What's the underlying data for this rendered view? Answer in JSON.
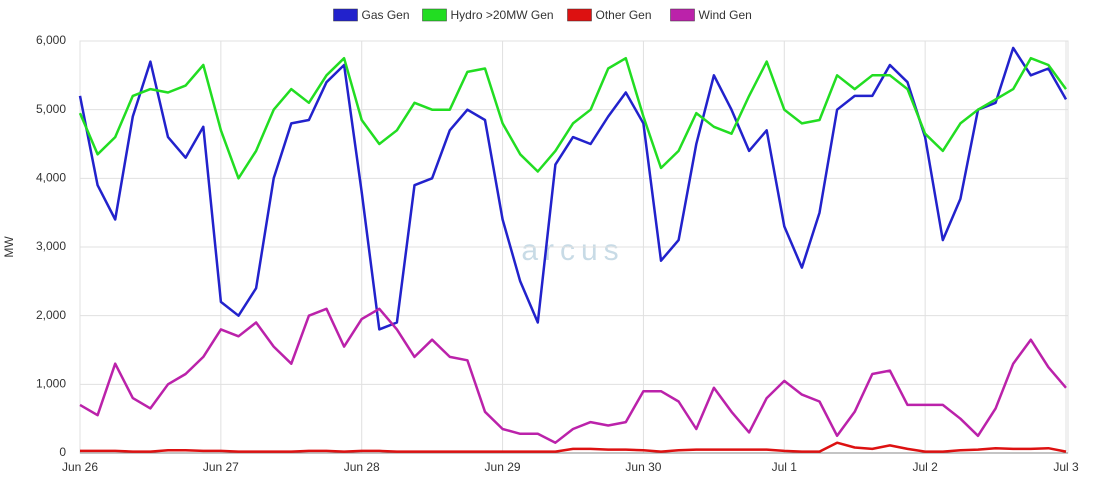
{
  "chart_data": {
    "type": "line",
    "ylabel": "MW",
    "watermark": "arcus",
    "categories": [
      "Jun 26",
      null,
      null,
      null,
      null,
      null,
      null,
      null,
      "Jun 27",
      null,
      null,
      null,
      null,
      null,
      null,
      null,
      "Jun 28",
      null,
      null,
      null,
      null,
      null,
      null,
      null,
      "Jun 29",
      null,
      null,
      null,
      null,
      null,
      null,
      null,
      "Jun 30",
      null,
      null,
      null,
      null,
      null,
      null,
      null,
      "Jul 1",
      null,
      null,
      null,
      null,
      null,
      null,
      null,
      "Jul 2",
      null,
      null,
      null,
      null,
      null,
      null,
      null,
      "Jul 3"
    ],
    "ylim": [
      0,
      6000
    ],
    "yticks": [
      0,
      {
        "value": 1000,
        "label": "1,000"
      },
      {
        "value": 2000,
        "label": "2,000"
      },
      {
        "value": 3000,
        "label": "3,000"
      },
      {
        "value": 4000,
        "label": "4,000"
      },
      {
        "value": 5000,
        "label": "5,000"
      },
      {
        "value": 6000,
        "label": "6,000"
      }
    ],
    "grid": true,
    "legend": "top",
    "series": [
      {
        "name": "Gas Gen",
        "color": "#2222cc",
        "values": [
          5200,
          3900,
          3400,
          4900,
          5700,
          4600,
          4300,
          4750,
          2200,
          2000,
          2400,
          4000,
          4800,
          4850,
          5400,
          5650,
          3800,
          1800,
          1900,
          3900,
          4000,
          4700,
          5000,
          4850,
          3400,
          2500,
          1900,
          4200,
          4600,
          4500,
          4900,
          5250,
          4800,
          2800,
          3100,
          4500,
          5500,
          5000,
          4400,
          4700,
          3300,
          2700,
          3500,
          5000,
          5200,
          5200,
          5650,
          5400,
          4600,
          3100,
          3700,
          5000,
          5100,
          5900,
          5500,
          5600,
          5150
        ]
      },
      {
        "name": "Hydro >20MW Gen",
        "color": "#22dd22",
        "values": [
          4950,
          4350,
          4600,
          5200,
          5300,
          5250,
          5350,
          5650,
          4700,
          4000,
          4400,
          5000,
          5300,
          5100,
          5500,
          5750,
          4850,
          4500,
          4700,
          5100,
          5000,
          5000,
          5550,
          5600,
          4800,
          4350,
          4100,
          4400,
          4800,
          5000,
          5600,
          5750,
          4900,
          4150,
          4400,
          4950,
          4750,
          4650,
          5200,
          5700,
          5000,
          4800,
          4850,
          5500,
          5300,
          5500,
          5500,
          5300,
          4650,
          4400,
          4800,
          5000,
          5150,
          5300,
          5750,
          5650,
          5300
        ]
      },
      {
        "name": "Other Gen",
        "color": "#dd1111",
        "values": [
          30,
          30,
          30,
          20,
          20,
          40,
          40,
          30,
          30,
          20,
          20,
          20,
          20,
          30,
          30,
          20,
          30,
          30,
          20,
          20,
          20,
          20,
          20,
          20,
          20,
          20,
          20,
          20,
          60,
          60,
          50,
          50,
          40,
          20,
          40,
          50,
          50,
          50,
          50,
          50,
          30,
          20,
          20,
          150,
          80,
          60,
          110,
          60,
          20,
          20,
          40,
          50,
          70,
          60,
          60,
          70,
          20
        ]
      },
      {
        "name": "Wind Gen",
        "color": "#bb22aa",
        "values": [
          700,
          550,
          1300,
          800,
          650,
          1000,
          1150,
          1400,
          1800,
          1700,
          1900,
          1550,
          1300,
          2000,
          2100,
          1550,
          1950,
          2100,
          1800,
          1400,
          1650,
          1400,
          1350,
          600,
          350,
          280,
          280,
          150,
          350,
          450,
          400,
          450,
          900,
          900,
          750,
          350,
          950,
          600,
          300,
          800,
          1050,
          850,
          750,
          250,
          600,
          1150,
          1200,
          700,
          700,
          700,
          500,
          250,
          650,
          1300,
          1650,
          1250,
          950
        ]
      }
    ]
  }
}
